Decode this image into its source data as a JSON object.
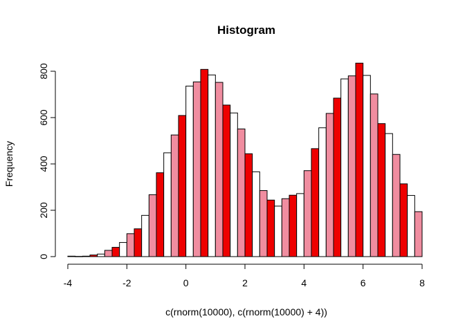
{
  "chart_data": {
    "type": "bar",
    "title": "Histogram",
    "xlabel": "c(rnorm(10000), c(rnorm(10000) + 4))",
    "ylabel": "Frequency",
    "xlim": [
      -4,
      8
    ],
    "ylim": [
      0,
      840
    ],
    "x_ticks": [
      "-4",
      "-2",
      "0",
      "2",
      "4",
      "6",
      "8"
    ],
    "y_ticks": [
      "0",
      "200",
      "400",
      "600",
      "800"
    ],
    "bin_width": 0.25,
    "colors": [
      "#ee0000",
      "#ffffff",
      "#f08da0"
    ],
    "bins": [
      {
        "x": -3.875,
        "value": 2
      },
      {
        "x": -3.625,
        "value": 1
      },
      {
        "x": -3.375,
        "value": 2
      },
      {
        "x": -3.125,
        "value": 7
      },
      {
        "x": -2.875,
        "value": 11
      },
      {
        "x": -2.625,
        "value": 27
      },
      {
        "x": -2.375,
        "value": 40
      },
      {
        "x": -2.125,
        "value": 61
      },
      {
        "x": -1.875,
        "value": 99
      },
      {
        "x": -1.625,
        "value": 120
      },
      {
        "x": -1.375,
        "value": 178
      },
      {
        "x": -1.125,
        "value": 267
      },
      {
        "x": -0.875,
        "value": 362
      },
      {
        "x": -0.625,
        "value": 448
      },
      {
        "x": -0.375,
        "value": 525
      },
      {
        "x": -0.125,
        "value": 609
      },
      {
        "x": 0.125,
        "value": 736
      },
      {
        "x": 0.375,
        "value": 754
      },
      {
        "x": 0.625,
        "value": 808
      },
      {
        "x": 0.875,
        "value": 784
      },
      {
        "x": 1.125,
        "value": 752
      },
      {
        "x": 1.375,
        "value": 654
      },
      {
        "x": 1.625,
        "value": 620
      },
      {
        "x": 1.875,
        "value": 551
      },
      {
        "x": 2.125,
        "value": 444
      },
      {
        "x": 2.375,
        "value": 366
      },
      {
        "x": 2.625,
        "value": 285
      },
      {
        "x": 2.875,
        "value": 244
      },
      {
        "x": 3.125,
        "value": 218
      },
      {
        "x": 3.375,
        "value": 250
      },
      {
        "x": 3.625,
        "value": 265
      },
      {
        "x": 3.875,
        "value": 272
      },
      {
        "x": 4.125,
        "value": 371
      },
      {
        "x": 4.375,
        "value": 466
      },
      {
        "x": 4.625,
        "value": 556
      },
      {
        "x": 4.875,
        "value": 618
      },
      {
        "x": 5.125,
        "value": 684
      },
      {
        "x": 5.375,
        "value": 767
      },
      {
        "x": 5.625,
        "value": 780
      },
      {
        "x": 5.875,
        "value": 835
      },
      {
        "x": 6.125,
        "value": 782
      },
      {
        "x": 6.375,
        "value": 702
      },
      {
        "x": 6.625,
        "value": 574
      },
      {
        "x": 6.875,
        "value": 531
      },
      {
        "x": 7.125,
        "value": 441
      },
      {
        "x": 7.375,
        "value": 314
      },
      {
        "x": 7.625,
        "value": 264
      },
      {
        "x": 7.875,
        "value": 194
      }
    ]
  }
}
